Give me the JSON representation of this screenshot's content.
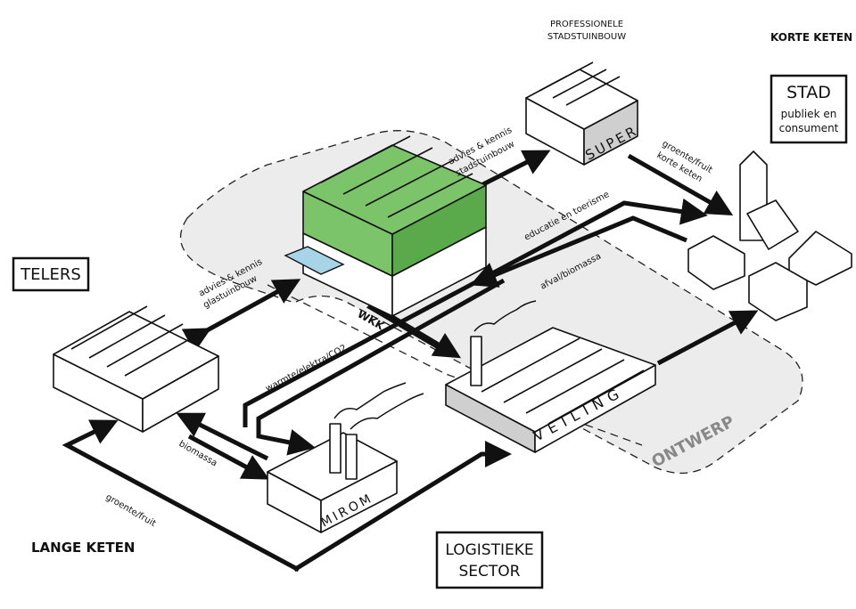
{
  "labels": {
    "telers": "TELERS",
    "stad_title": "STAD",
    "stad_sub1": "publiek en",
    "stad_sub2": "consument",
    "logistiek1": "LOGISTIEKE",
    "logistiek2": "SECTOR",
    "lange_keten": "LANGE KETEN",
    "korte_keten": "KORTE KETEN",
    "prof1": "PROFESSIONELE",
    "prof2": "STADSTUINBOUW",
    "ontwerp": "ONTWERP",
    "wkk": "WKK"
  },
  "building_labels": {
    "super": "SUPER",
    "mirom": "MIROM",
    "veiling": "VEILING"
  },
  "flow_labels": {
    "advies_stadstuinbouw_1": "advies & kennis",
    "advies_stadstuinbouw_2": "stadstuinbouw",
    "advies_glastuinbouw_1": "advies & kennis",
    "advies_glastuinbouw_2": "glastuinbouw",
    "groente_korte_1": "groente/fruit",
    "groente_korte_2": "korte keten",
    "educatie": "educatie en toerisme",
    "afval": "afval/biomassa",
    "warmte": "warmte/elektra/CO2",
    "biomassa": "biomassa",
    "groente_lange": "groente/fruit"
  },
  "colors": {
    "greenhouse": "#7cc46a",
    "zone_fill": "#ececec",
    "ink": "#111111"
  }
}
